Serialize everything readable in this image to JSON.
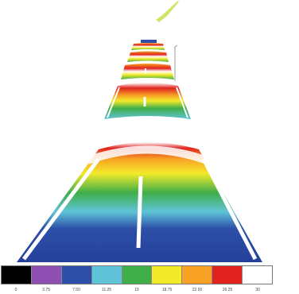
{
  "legend": {
    "colors": [
      "#000000",
      "#8e4fb3",
      "#2d4fa8",
      "#5fc4d8",
      "#3fae49",
      "#f3ea2a",
      "#f7a224",
      "#e0231f",
      "#ffffff"
    ],
    "tick_labels": [
      "0",
      "3.75",
      "7.50",
      "11.25",
      "15",
      "18.75",
      "22.50",
      "26.25",
      "30"
    ]
  }
}
